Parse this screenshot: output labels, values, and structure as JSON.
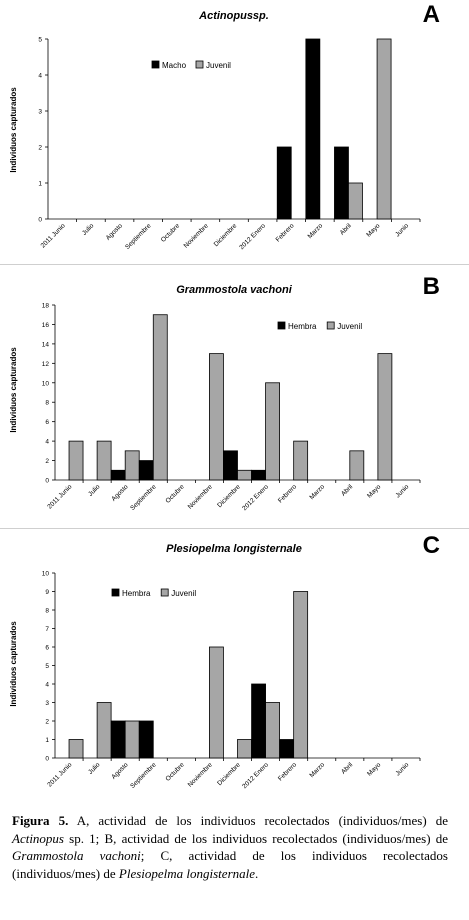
{
  "chart_data": [
    {
      "type": "bar",
      "panel_letter": "A",
      "title": "Actinopussp.",
      "ylabel": "Individuos capturados",
      "ylim": [
        0,
        5
      ],
      "yticks": [
        "0",
        "1",
        "2",
        "3",
        "4",
        "5"
      ],
      "categories": [
        "2011 Junio",
        "Julio",
        "Agosto",
        "Septiembre",
        "Octubre",
        "Noviembre",
        "Diciembre",
        "2012 Enero",
        "Febrero",
        "Marzo",
        "Abril",
        "Mayo",
        "Junio"
      ],
      "legend_position": "top-center",
      "series": [
        {
          "name": "Macho",
          "color": "#000000",
          "values": [
            0,
            0,
            0,
            0,
            0,
            0,
            0,
            0,
            2,
            5,
            2,
            0,
            0
          ]
        },
        {
          "name": "Juvenil",
          "color": "#a6a6a6",
          "values": [
            0,
            0,
            0,
            0,
            0,
            0,
            0,
            0,
            0,
            0,
            1,
            5,
            0
          ]
        }
      ]
    },
    {
      "type": "bar",
      "panel_letter": "B",
      "title": "Grammostola vachoni",
      "ylabel": "Individuos capturados",
      "ylim": [
        0,
        18
      ],
      "yticks": [
        "0",
        "2",
        "4",
        "6",
        "8",
        "10",
        "12",
        "14",
        "16",
        "18"
      ],
      "categories": [
        "2011 Junio",
        "Julio",
        "Agosto",
        "Septiembre",
        "Octubre",
        "Noviembre",
        "Diciembre",
        "2012 Enero",
        "Febrero",
        "Marzo",
        "Abril",
        "Mayo",
        "Junio"
      ],
      "legend_position": "top-right",
      "series": [
        {
          "name": "Hembra",
          "color": "#000000",
          "values": [
            0,
            0,
            1,
            2,
            0,
            0,
            3,
            1,
            0,
            0,
            0,
            0,
            0
          ]
        },
        {
          "name": "Juvenil",
          "color": "#a6a6a6",
          "values": [
            4,
            4,
            3,
            17,
            0,
            13,
            1,
            10,
            4,
            0,
            3,
            13,
            0
          ]
        }
      ]
    },
    {
      "type": "bar",
      "panel_letter": "C",
      "title": "Plesiopelma longisternale",
      "ylabel": "Individuos capturados",
      "ylim": [
        0,
        10
      ],
      "yticks": [
        "0",
        "1",
        "2",
        "3",
        "4",
        "5",
        "6",
        "7",
        "8",
        "9",
        "10"
      ],
      "categories": [
        "2011 Junio",
        "Julio",
        "Agosto",
        "Septiembre",
        "Octubre",
        "Noviembre",
        "Diciembre",
        "2012 Enero",
        "Febrero",
        "Marzo",
        "Abril",
        "Mayo",
        "Junio"
      ],
      "legend_position": "top-left",
      "series": [
        {
          "name": "Hembra",
          "color": "#000000",
          "values": [
            0,
            0,
            2,
            2,
            0,
            0,
            0,
            4,
            1,
            0,
            0,
            0,
            0
          ]
        },
        {
          "name": "Juvenil",
          "color": "#a6a6a6",
          "values": [
            1,
            3,
            2,
            0,
            0,
            6,
            1,
            3,
            9,
            0,
            0,
            0,
            0
          ]
        }
      ]
    }
  ],
  "caption": {
    "figure_label": "Figura 5.",
    "segments": [
      {
        "text": " A, actividad de los individuos recolectados (individuos/mes) de ",
        "italic": false
      },
      {
        "text": "Actinopus",
        "italic": true
      },
      {
        "text": " sp. 1; B, actividad de los individuos recolectados (individuos/mes) de ",
        "italic": false
      },
      {
        "text": "Grammostola vachoni",
        "italic": true
      },
      {
        "text": "; C, actividad de los individuos recolectados (individuos/mes) de ",
        "italic": false
      },
      {
        "text": "Plesiopelma longisternale",
        "italic": true
      },
      {
        "text": ".",
        "italic": false
      }
    ]
  }
}
